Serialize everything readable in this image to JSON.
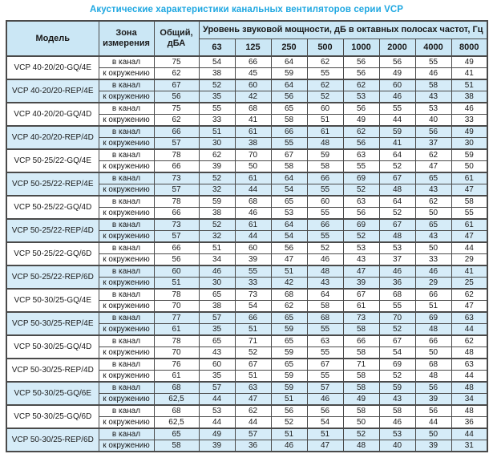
{
  "title": "Акустические характеристики канальных вентиляторов  серии VCP",
  "colors": {
    "title_accent": "#1ea7e1",
    "header_bg": "#cbe7f5",
    "band_row_bg": "#d6ecf8",
    "border": "#4a4a4a"
  },
  "table": {
    "headers": {
      "model": "Модель",
      "zone": "Зона измерения",
      "total": "Общий, дБА",
      "spl": "Уровень звуковой мощности, дБ в октавных полосах частот, Гц"
    },
    "frequencies": [
      "63",
      "125",
      "250",
      "500",
      "1000",
      "2000",
      "4000",
      "8000"
    ],
    "zone_labels": [
      "в канал",
      "к окружению"
    ],
    "rows": [
      {
        "model": "VCP 40-20/20-GQ/4E",
        "highlight": false,
        "zones": [
          {
            "total": "75",
            "bands": [
              54,
              66,
              64,
              62,
              56,
              56,
              55,
              49
            ]
          },
          {
            "total": "62",
            "bands": [
              38,
              45,
              59,
              55,
              56,
              49,
              46,
              41
            ]
          }
        ]
      },
      {
        "model": "VCP 40-20/20-REP/4E",
        "highlight": true,
        "zones": [
          {
            "total": "67",
            "bands": [
              52,
              60,
              64,
              62,
              62,
              60,
              58,
              51
            ]
          },
          {
            "total": "56",
            "bands": [
              35,
              42,
              56,
              52,
              53,
              46,
              43,
              38
            ]
          }
        ]
      },
      {
        "model": "VCP 40-20/20-GQ/4D",
        "highlight": false,
        "zones": [
          {
            "total": "75",
            "bands": [
              55,
              68,
              65,
              60,
              56,
              55,
              53,
              46
            ]
          },
          {
            "total": "62",
            "bands": [
              33,
              41,
              58,
              51,
              49,
              44,
              40,
              33
            ]
          }
        ]
      },
      {
        "model": "VCP 40-20/20-REP/4D",
        "highlight": true,
        "zones": [
          {
            "total": "66",
            "bands": [
              51,
              61,
              66,
              61,
              62,
              59,
              56,
              49
            ]
          },
          {
            "total": "57",
            "bands": [
              30,
              38,
              55,
              48,
              56,
              41,
              37,
              30
            ]
          }
        ]
      },
      {
        "model": "VCP 50-25/22-GQ/4E",
        "highlight": false,
        "zones": [
          {
            "total": "78",
            "bands": [
              62,
              70,
              67,
              59,
              63,
              64,
              62,
              59
            ]
          },
          {
            "total": "66",
            "bands": [
              39,
              50,
              58,
              58,
              55,
              52,
              47,
              50
            ]
          }
        ]
      },
      {
        "model": "VCP 50-25/22-REP/4E",
        "highlight": true,
        "zones": [
          {
            "total": "73",
            "bands": [
              52,
              61,
              64,
              66,
              69,
              67,
              65,
              61
            ]
          },
          {
            "total": "57",
            "bands": [
              32,
              44,
              54,
              55,
              52,
              48,
              43,
              47
            ]
          }
        ]
      },
      {
        "model": "VCP 50-25/22-GQ/4D",
        "highlight": false,
        "zones": [
          {
            "total": "78",
            "bands": [
              59,
              68,
              65,
              60,
              63,
              64,
              62,
              58
            ]
          },
          {
            "total": "66",
            "bands": [
              38,
              46,
              53,
              55,
              56,
              52,
              50,
              55
            ]
          }
        ]
      },
      {
        "model": "VCP 50-25/22-REP/4D",
        "highlight": true,
        "zones": [
          {
            "total": "73",
            "bands": [
              52,
              61,
              64,
              66,
              69,
              67,
              65,
              61
            ]
          },
          {
            "total": "57",
            "bands": [
              32,
              44,
              54,
              55,
              52,
              48,
              43,
              47
            ]
          }
        ]
      },
      {
        "model": "VCP 50-25/22-GQ/6D",
        "highlight": false,
        "zones": [
          {
            "total": "66",
            "bands": [
              51,
              60,
              56,
              52,
              53,
              53,
              50,
              44
            ]
          },
          {
            "total": "56",
            "bands": [
              34,
              39,
              47,
              46,
              43,
              37,
              33,
              29
            ]
          }
        ]
      },
      {
        "model": "VCP 50-25/22-REP/6D",
        "highlight": true,
        "zones": [
          {
            "total": "60",
            "bands": [
              46,
              55,
              51,
              48,
              47,
              46,
              46,
              41
            ]
          },
          {
            "total": "51",
            "bands": [
              30,
              33,
              42,
              43,
              39,
              36,
              29,
              25
            ]
          }
        ]
      },
      {
        "model": "VCP 50-30/25-GQ/4E",
        "highlight": false,
        "zones": [
          {
            "total": "78",
            "bands": [
              65,
              73,
              68,
              64,
              67,
              68,
              66,
              62
            ]
          },
          {
            "total": "70",
            "bands": [
              38,
              54,
              62,
              58,
              61,
              55,
              51,
              47
            ]
          }
        ]
      },
      {
        "model": "VCP 50-30/25-REP/4E",
        "highlight": true,
        "zones": [
          {
            "total": "77",
            "bands": [
              57,
              66,
              65,
              68,
              73,
              70,
              69,
              63
            ]
          },
          {
            "total": "61",
            "bands": [
              35,
              51,
              59,
              55,
              58,
              52,
              48,
              44
            ]
          }
        ]
      },
      {
        "model": "VCP 50-30/25-GQ/4D",
        "highlight": false,
        "zones": [
          {
            "total": "78",
            "bands": [
              65,
              71,
              65,
              63,
              66,
              67,
              66,
              62
            ]
          },
          {
            "total": "70",
            "bands": [
              43,
              52,
              59,
              55,
              58,
              54,
              50,
              48
            ]
          }
        ]
      },
      {
        "model": "VCP 50-30/25-REP/4D",
        "highlight": false,
        "zones": [
          {
            "total": "76",
            "bands": [
              60,
              67,
              65,
              67,
              71,
              69,
              68,
              63
            ]
          },
          {
            "total": "61",
            "bands": [
              35,
              51,
              59,
              55,
              58,
              52,
              48,
              44
            ]
          }
        ]
      },
      {
        "model": "VCP 50-30/25-GQ/6E",
        "highlight": true,
        "zones": [
          {
            "total": "68",
            "bands": [
              57,
              63,
              59,
              57,
              58,
              59,
              56,
              48
            ]
          },
          {
            "total": "62,5",
            "bands": [
              44,
              47,
              51,
              46,
              49,
              43,
              39,
              34
            ]
          }
        ]
      },
      {
        "model": "VCP 50-30/25-GQ/6D",
        "highlight": false,
        "zones": [
          {
            "total": "68",
            "bands": [
              53,
              62,
              56,
              56,
              58,
              58,
              56,
              48
            ]
          },
          {
            "total": "62,5",
            "bands": [
              44,
              44,
              52,
              54,
              50,
              46,
              44,
              36
            ]
          }
        ]
      },
      {
        "model": "VCP 50-30/25-REP/6D",
        "highlight": true,
        "zones": [
          {
            "total": "65",
            "bands": [
              49,
              57,
              51,
              51,
              52,
              53,
              50,
              44
            ]
          },
          {
            "total": "58",
            "bands": [
              39,
              36,
              46,
              47,
              48,
              40,
              39,
              31
            ]
          }
        ]
      }
    ]
  }
}
